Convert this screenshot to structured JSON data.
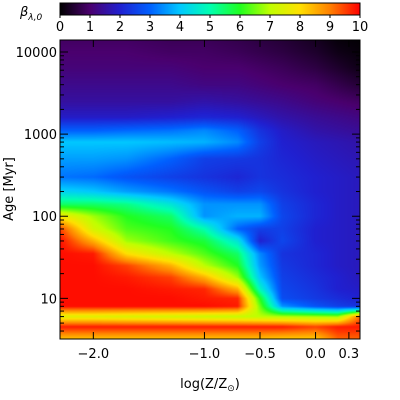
{
  "chart_data": {
    "type": "heatmap",
    "title": "",
    "colorbar": {
      "label": "β",
      "label_subscript": "λ,0",
      "ticks": [
        "0",
        "1",
        "2",
        "3",
        "4",
        "5",
        "6",
        "7",
        "8",
        "9",
        "10"
      ],
      "range": [
        0,
        10
      ],
      "colors": [
        "#000000",
        "#4a006e",
        "#2020d0",
        "#0060ff",
        "#00c8ff",
        "#00ffb0",
        "#20ff20",
        "#c0ff00",
        "#ffe000",
        "#ff8000",
        "#ff0000"
      ]
    },
    "xlabel": "log(Z/Z",
    "xlabel_sub": "⊙",
    "xlabel_close": ")",
    "ylabel": "Age",
    "ylabel_unit": "[Myr]",
    "xlim": [
      -2.3,
      0.4
    ],
    "ylim": [
      3.2,
      14000
    ],
    "yscale": "log",
    "x_ticks": [
      {
        "value": -2.0,
        "label": "−2.0"
      },
      {
        "value": -1.0,
        "label": "−1.0"
      },
      {
        "value": -0.5,
        "label": "−0.5"
      },
      {
        "value": 0.0,
        "label": "0.0"
      },
      {
        "value": 0.3,
        "label": "0.3"
      }
    ],
    "y_ticks": [
      {
        "value": 10,
        "label": "10"
      },
      {
        "value": 100,
        "label": "100"
      },
      {
        "value": 1000,
        "label": "1000"
      },
      {
        "value": 10000,
        "label": "10000"
      }
    ],
    "x": [
      -2.3,
      -2.0,
      -1.7,
      -1.3,
      -1.0,
      -0.7,
      -0.5,
      -0.3,
      0.0,
      0.2,
      0.4
    ],
    "y": [
      3.2,
      4.5,
      6,
      8,
      10,
      13,
      18,
      25,
      35,
      50,
      70,
      100,
      140,
      200,
      300,
      500,
      800,
      1100,
      1600,
      2500,
      4000,
      6500,
      10000,
      14000
    ],
    "z": [
      [
        8.3,
        8.3,
        8.3,
        8.3,
        8.3,
        8.3,
        8.3,
        8.2,
        8.2,
        9.2,
        9.2
      ],
      [
        9.8,
        9.8,
        9.8,
        9.8,
        9.8,
        9.8,
        9.8,
        9.8,
        9.5,
        9.8,
        9.8
      ],
      [
        7.5,
        7.5,
        7.4,
        7.3,
        7.2,
        7.1,
        7.0,
        6.9,
        6.8,
        6.7,
        9.2
      ],
      [
        9.9,
        9.9,
        9.9,
        9.9,
        9.9,
        9.8,
        6.5,
        3.5,
        2.8,
        2.5,
        2.3
      ],
      [
        9.9,
        9.9,
        9.9,
        9.9,
        9.8,
        9.7,
        6.0,
        2.7,
        2.4,
        2.2,
        2.0
      ],
      [
        9.9,
        9.9,
        9.9,
        9.8,
        9.7,
        8.5,
        4.8,
        2.6,
        2.3,
        2.0,
        1.9
      ],
      [
        9.9,
        9.9,
        9.8,
        9.5,
        8.5,
        6.8,
        4.0,
        2.5,
        2.2,
        2.0,
        1.8
      ],
      [
        9.9,
        9.9,
        9.5,
        8.5,
        7.0,
        6.0,
        3.6,
        2.4,
        2.1,
        1.9,
        1.8
      ],
      [
        9.9,
        9.8,
        8.0,
        7.0,
        6.3,
        5.5,
        3.4,
        2.3,
        2.1,
        1.9,
        1.8
      ],
      [
        9.9,
        8.5,
        6.8,
        6.2,
        5.8,
        4.5,
        2.0,
        2.6,
        2.0,
        1.9,
        1.8
      ],
      [
        9.5,
        7.3,
        6.3,
        6.0,
        5.0,
        3.0,
        2.5,
        2.5,
        2.0,
        1.9,
        1.8
      ],
      [
        7.8,
        6.8,
        6.0,
        5.5,
        3.5,
        3.8,
        3.8,
        2.6,
        2.1,
        1.9,
        1.8
      ],
      [
        5.5,
        5.5,
        5.3,
        4.5,
        3.5,
        3.5,
        3.5,
        2.5,
        2.1,
        1.9,
        1.8
      ],
      [
        4.2,
        4.0,
        3.6,
        3.2,
        2.8,
        2.5,
        2.6,
        2.3,
        2.0,
        1.9,
        1.8
      ],
      [
        3.2,
        3.1,
        2.8,
        2.5,
        2.3,
        2.1,
        2.3,
        2.2,
        2.0,
        1.9,
        1.8
      ],
      [
        3.6,
        3.6,
        3.5,
        3.0,
        2.5,
        2.4,
        2.3,
        2.1,
        1.9,
        1.8,
        1.7
      ],
      [
        4.0,
        4.0,
        4.0,
        3.9,
        3.8,
        3.4,
        2.5,
        2.0,
        1.8,
        1.7,
        1.6
      ],
      [
        3.0,
        3.0,
        3.1,
        3.2,
        3.4,
        3.0,
        2.3,
        1.9,
        1.6,
        1.5,
        1.4
      ],
      [
        1.9,
        1.9,
        1.9,
        2.0,
        2.1,
        2.0,
        1.8,
        1.6,
        1.4,
        1.3,
        1.2
      ],
      [
        1.5,
        1.5,
        1.5,
        1.5,
        1.6,
        1.5,
        1.4,
        1.3,
        1.1,
        1.0,
        0.9
      ],
      [
        1.3,
        1.3,
        1.3,
        1.3,
        1.2,
        1.2,
        1.1,
        1.0,
        0.9,
        0.7,
        0.5
      ],
      [
        1.1,
        1.1,
        1.1,
        1.1,
        1.0,
        1.0,
        0.9,
        0.8,
        0.6,
        0.4,
        0.2
      ],
      [
        1.0,
        1.0,
        1.0,
        0.9,
        0.9,
        0.8,
        0.7,
        0.6,
        0.4,
        0.2,
        0.1
      ],
      [
        0.9,
        0.9,
        0.9,
        0.8,
        0.8,
        0.7,
        0.6,
        0.5,
        0.3,
        0.1,
        0.05
      ]
    ]
  }
}
